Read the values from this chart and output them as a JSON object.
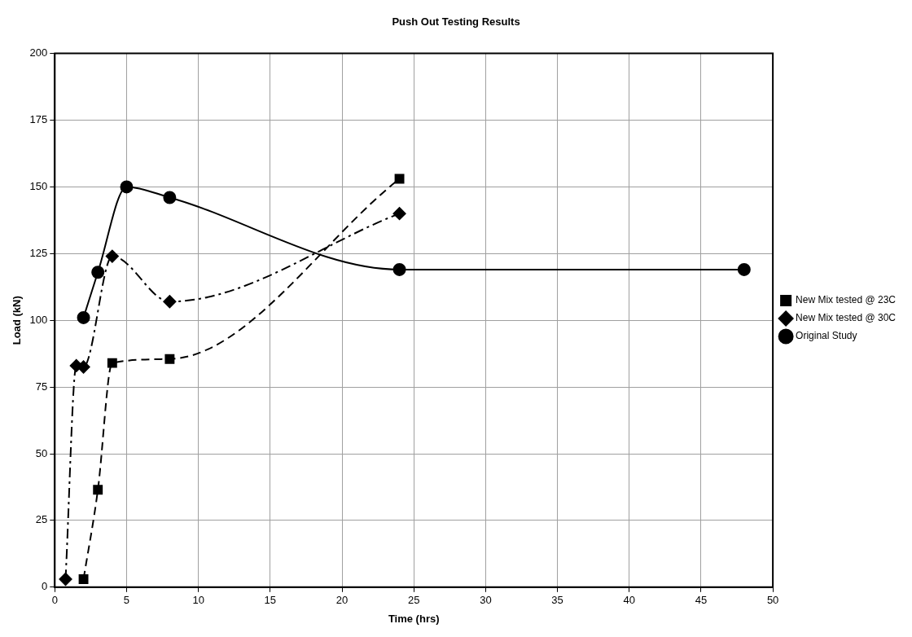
{
  "chart_data": {
    "type": "line",
    "title": "Push Out Testing Results",
    "xlabel": "Time (hrs)",
    "ylabel": "Load (kN)",
    "xlim": [
      0,
      50
    ],
    "xticks": [
      0,
      5,
      10,
      15,
      20,
      25,
      30,
      35,
      40,
      45,
      50
    ],
    "ylim": [
      0,
      200
    ],
    "yticks": [
      0,
      25,
      50,
      75,
      100,
      125,
      150,
      175,
      200
    ],
    "grid": true,
    "legend": "right",
    "series": [
      {
        "name": "New Mix tested @ 23C",
        "color": "#000000",
        "marker": "square",
        "line_style": "dashed",
        "x": [
          2,
          3,
          4,
          8,
          24
        ],
        "values": [
          3,
          36.5,
          84,
          85.5,
          153
        ]
      },
      {
        "name": "New Mix tested @ 30C",
        "color": "#000000",
        "marker": "diamond",
        "line_style": "dashdot",
        "x": [
          0.75,
          1.5,
          2,
          4,
          8,
          24
        ],
        "values": [
          3,
          83,
          82.5,
          124,
          107,
          140
        ]
      },
      {
        "name": "Original Study",
        "color": "#000000",
        "marker": "circle",
        "line_style": "solid",
        "x": [
          2,
          3,
          5,
          8,
          24,
          48
        ],
        "values": [
          101,
          118,
          150,
          146,
          119,
          119
        ]
      }
    ]
  }
}
